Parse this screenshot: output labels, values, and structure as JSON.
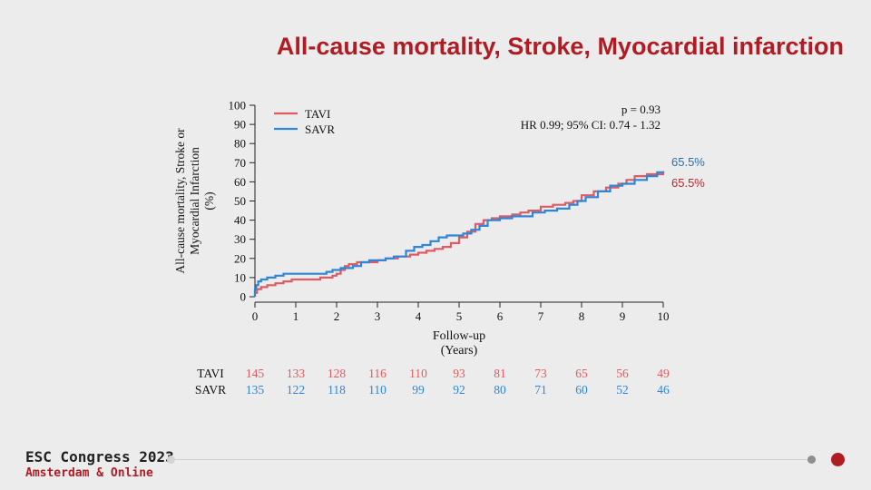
{
  "title": "All-cause mortality, Stroke, Myocardial infarction",
  "footer": {
    "congress": "ESC Congress 2023",
    "location": "Amsterdam & Online"
  },
  "colors": {
    "tavi": "#e05b61",
    "savr": "#2e86d9",
    "title": "#b01c24",
    "tavi_end_label": "#c0262d",
    "savr_end_label": "#2a6fb0"
  },
  "chart_data": {
    "type": "line",
    "subtype": "kaplan-meier cumulative incidence (step)",
    "ylabel_lines": [
      "All-cause mortality, Stroke or",
      "Myocardial Infarction",
      "(%)"
    ],
    "xlabel_lines": [
      "Follow-up",
      "(Years)"
    ],
    "xlim": [
      0,
      10
    ],
    "ylim": [
      0,
      100
    ],
    "x_ticks": [
      0,
      1,
      2,
      3,
      4,
      5,
      6,
      7,
      8,
      9,
      10
    ],
    "y_ticks": [
      0,
      10,
      20,
      30,
      40,
      50,
      60,
      70,
      80,
      90,
      100
    ],
    "grid": false,
    "legend_position": "top-left",
    "annotations": [
      "p = 0.93",
      "HR 0.99; 95% CI: 0.74 - 1.32"
    ],
    "end_labels": {
      "savr": "65.5%",
      "tavi": "65.5%"
    },
    "series": [
      {
        "name": "TAVI",
        "color": "#e05b61",
        "x": [
          0,
          0.05,
          0.15,
          0.3,
          0.5,
          0.7,
          0.9,
          1.1,
          1.4,
          1.6,
          1.8,
          1.9,
          2.0,
          2.1,
          2.2,
          2.3,
          2.5,
          2.8,
          3.0,
          3.2,
          3.5,
          3.8,
          4.0,
          4.2,
          4.4,
          4.6,
          4.8,
          5.0,
          5.2,
          5.4,
          5.6,
          5.8,
          6.0,
          6.3,
          6.5,
          6.7,
          7.0,
          7.3,
          7.6,
          7.8,
          8.0,
          8.3,
          8.6,
          8.9,
          9.1,
          9.3,
          9.6,
          10.0
        ],
        "y": [
          2,
          4,
          5,
          6,
          7,
          8,
          9,
          9,
          9,
          10,
          10,
          11,
          12,
          14,
          16,
          17,
          18,
          18,
          19,
          20,
          21,
          22,
          23,
          24,
          25,
          26,
          28,
          31,
          34,
          38,
          40,
          41,
          42,
          43,
          44,
          45,
          47,
          48,
          49,
          50,
          53,
          55,
          57,
          59,
          61,
          63,
          64,
          65.5
        ]
      },
      {
        "name": "SAVR",
        "color": "#2e86d9",
        "x": [
          0,
          0.03,
          0.08,
          0.15,
          0.3,
          0.5,
          0.7,
          1.0,
          1.3,
          1.6,
          1.75,
          1.9,
          2.1,
          2.4,
          2.6,
          2.8,
          3.0,
          3.2,
          3.4,
          3.5,
          3.7,
          3.9,
          4.1,
          4.3,
          4.5,
          4.7,
          4.9,
          5.1,
          5.3,
          5.5,
          5.7,
          6.0,
          6.3,
          6.5,
          6.8,
          7.1,
          7.4,
          7.7,
          7.9,
          8.1,
          8.4,
          8.7,
          9.0,
          9.3,
          9.6,
          9.85,
          10.0
        ],
        "y": [
          4,
          6,
          8,
          9,
          10,
          11,
          12,
          12,
          12,
          12,
          13,
          14,
          15,
          16,
          18,
          19,
          19,
          20,
          21,
          21,
          24,
          26,
          27,
          29,
          31,
          32,
          32,
          33,
          35,
          37,
          40,
          41,
          42,
          42,
          44,
          45,
          46,
          48,
          50,
          52,
          55,
          58,
          59,
          61,
          63,
          65,
          65.5
        ]
      }
    ],
    "risk_table": {
      "times": [
        0,
        1,
        2,
        3,
        4,
        5,
        6,
        7,
        8,
        9,
        10
      ],
      "rows": [
        {
          "label": "TAVI",
          "counts": [
            145,
            133,
            128,
            116,
            110,
            93,
            81,
            73,
            65,
            56,
            49
          ]
        },
        {
          "label": "SAVR",
          "counts": [
            135,
            122,
            118,
            110,
            99,
            92,
            80,
            71,
            60,
            52,
            46
          ]
        }
      ]
    }
  }
}
